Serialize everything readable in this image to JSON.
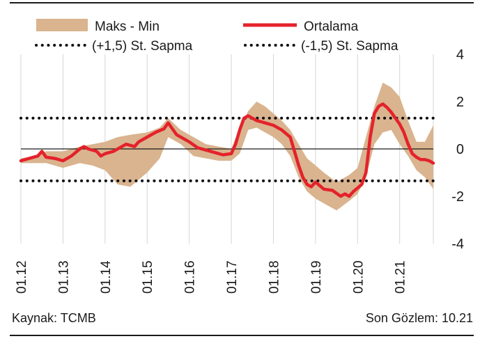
{
  "chart_data": {
    "type": "line",
    "legend": {
      "band_label": "Maks - Min",
      "mean_label": "Ortalama",
      "upper_label": "(+1,5) St. Sapma",
      "lower_label": "(-1,5) St. Sapma",
      "placement": "top"
    },
    "colors": {
      "band": "#d9b48f",
      "mean": "#e4222b",
      "dotted": "#0d0d0d",
      "grid": "#d4d4d4"
    },
    "ylim": [
      -4,
      4
    ],
    "y_ticks": [
      "4",
      "2",
      "0",
      "-2",
      "-4"
    ],
    "y_tick_values": [
      4,
      2,
      0,
      -2,
      -4
    ],
    "x_ticks": [
      "01.12",
      "01.13",
      "01.14",
      "01.15",
      "01.16",
      "01.17",
      "01.18",
      "01.19",
      "01.20",
      "01.21"
    ],
    "xlim": [
      2012.0,
      2021.8
    ],
    "grid": "vertical",
    "zero_line": 0,
    "upper_std": 1.3,
    "lower_std": -1.35,
    "series": [
      {
        "name": "Ortalama",
        "x": [
          2012.0,
          2012.2,
          2012.4,
          2012.5,
          2012.6,
          2012.8,
          2013.0,
          2013.2,
          2013.4,
          2013.5,
          2013.6,
          2013.8,
          2013.9,
          2014.0,
          2014.2,
          2014.4,
          2014.5,
          2014.7,
          2014.8,
          2015.0,
          2015.2,
          2015.4,
          2015.5,
          2015.7,
          2015.9,
          2016.0,
          2016.2,
          2016.4,
          2016.6,
          2016.8,
          2017.0,
          2017.1,
          2017.2,
          2017.3,
          2017.4,
          2017.6,
          2017.8,
          2018.0,
          2018.2,
          2018.4,
          2018.5,
          2018.6,
          2018.7,
          2018.8,
          2018.9,
          2019.0,
          2019.2,
          2019.4,
          2019.6,
          2019.7,
          2019.8,
          2019.9,
          2020.0,
          2020.1,
          2020.2,
          2020.3,
          2020.4,
          2020.5,
          2020.6,
          2020.7,
          2020.8,
          2020.9,
          2021.0,
          2021.1,
          2021.2,
          2021.3,
          2021.4,
          2021.5,
          2021.6,
          2021.7,
          2021.8
        ],
        "y": [
          -0.5,
          -0.4,
          -0.3,
          -0.1,
          -0.35,
          -0.4,
          -0.5,
          -0.3,
          0.0,
          0.1,
          0.0,
          -0.1,
          -0.3,
          -0.2,
          -0.1,
          0.1,
          0.2,
          0.1,
          0.3,
          0.5,
          0.7,
          0.85,
          1.1,
          0.6,
          0.4,
          0.3,
          0.05,
          -0.05,
          -0.15,
          -0.25,
          -0.2,
          0.2,
          0.8,
          1.3,
          1.4,
          1.2,
          1.1,
          1.0,
          0.8,
          0.5,
          -0.1,
          -0.7,
          -1.2,
          -1.5,
          -1.6,
          -1.4,
          -1.7,
          -1.75,
          -2.0,
          -1.9,
          -2.0,
          -1.8,
          -1.65,
          -1.5,
          -1.0,
          0.5,
          1.5,
          1.8,
          1.9,
          1.75,
          1.55,
          1.3,
          1.05,
          0.7,
          0.2,
          -0.2,
          -0.35,
          -0.45,
          -0.45,
          -0.5,
          -0.6
        ]
      }
    ],
    "band": {
      "name": "Maks - Min",
      "x": [
        2012.0,
        2012.3,
        2012.6,
        2013.0,
        2013.4,
        2013.7,
        2014.0,
        2014.3,
        2014.6,
        2015.0,
        2015.3,
        2015.5,
        2015.8,
        2016.1,
        2016.4,
        2016.7,
        2017.0,
        2017.2,
        2017.4,
        2017.6,
        2017.8,
        2018.0,
        2018.2,
        2018.4,
        2018.6,
        2018.8,
        2019.0,
        2019.2,
        2019.5,
        2019.8,
        2020.0,
        2020.2,
        2020.4,
        2020.6,
        2020.8,
        2021.0,
        2021.2,
        2021.4,
        2021.6,
        2021.8
      ],
      "high": [
        -0.4,
        -0.3,
        -0.1,
        -0.1,
        0.1,
        0.2,
        0.3,
        0.5,
        0.6,
        0.7,
        0.9,
        1.3,
        0.8,
        0.5,
        0.2,
        0.1,
        0.0,
        0.9,
        1.6,
        2.0,
        1.8,
        1.5,
        1.2,
        0.8,
        0.2,
        -0.4,
        -0.7,
        -1.0,
        -1.4,
        -1.1,
        -0.8,
        0.5,
        1.8,
        2.8,
        2.6,
        2.2,
        1.2,
        0.3,
        0.3,
        1.0
      ],
      "low": [
        -0.6,
        -0.6,
        -0.6,
        -0.8,
        -0.6,
        -0.7,
        -0.9,
        -1.5,
        -1.6,
        -1.0,
        -0.4,
        0.5,
        0.2,
        -0.3,
        -0.4,
        -0.5,
        -0.5,
        -0.2,
        0.8,
        0.9,
        0.7,
        0.5,
        0.2,
        -0.3,
        -1.2,
        -1.8,
        -2.1,
        -2.3,
        -2.6,
        -2.2,
        -1.9,
        -1.2,
        0.2,
        0.7,
        0.8,
        0.2,
        -0.3,
        -0.9,
        -1.2,
        -1.7
      ]
    }
  },
  "footer": {
    "source": "Kaynak: TCMB",
    "last_obs": "Son Gözlem: 10.21"
  }
}
